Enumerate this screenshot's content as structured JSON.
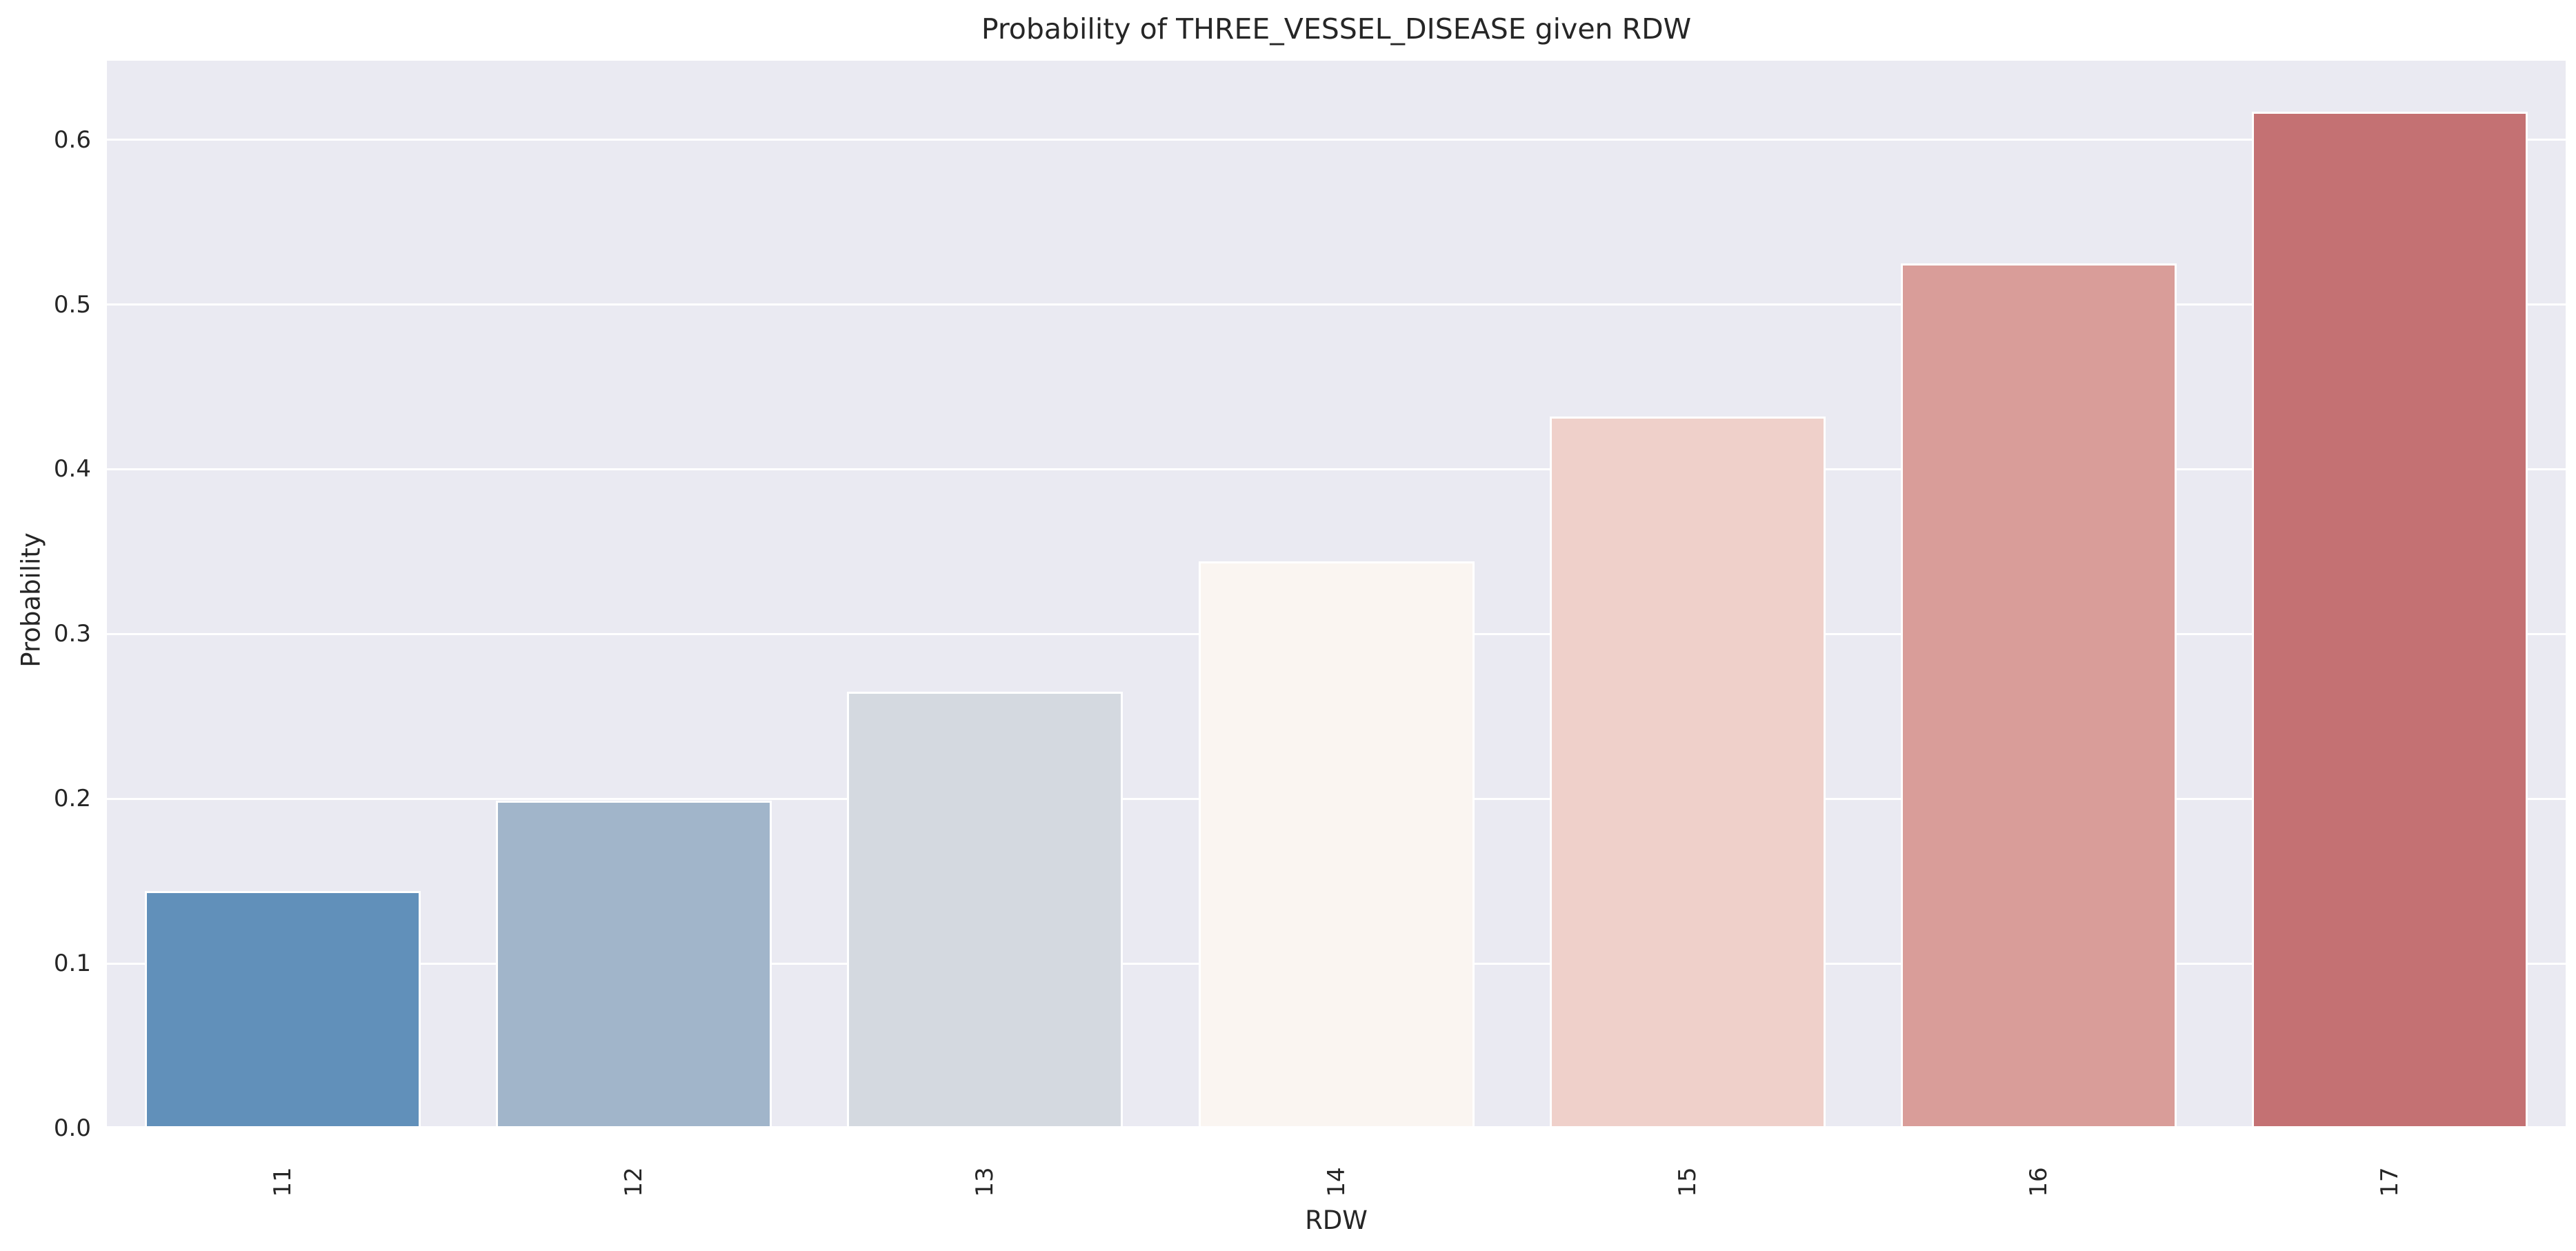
{
  "chart_data": {
    "type": "bar",
    "title": "Probability of THREE_VESSEL_DISEASE given RDW",
    "xlabel": "RDW",
    "ylabel": "Probability",
    "categories": [
      "11",
      "12",
      "13",
      "14",
      "15",
      "16",
      "17"
    ],
    "values": [
      0.144,
      0.199,
      0.265,
      0.344,
      0.432,
      0.525,
      0.617
    ],
    "bar_colors": [
      "#6190ba",
      "#a1b5ca",
      "#d4d9e0",
      "#faf5f1",
      "#efd0ca",
      "#d99d99",
      "#c47173"
    ],
    "bar_edge_color": "#ffffff",
    "yticks": [
      0.0,
      0.1,
      0.2,
      0.3,
      0.4,
      0.5,
      0.6
    ],
    "ytick_labels": [
      "0.0",
      "0.1",
      "0.2",
      "0.3",
      "0.4",
      "0.5",
      "0.6"
    ],
    "ylim": [
      0,
      0.648
    ],
    "grid": true,
    "grid_color": "#ffffff",
    "plot_bg": "#eaeaf2",
    "figure_bg": "#ffffff",
    "text_color": "#262626",
    "x_tick_rotation": 90,
    "legend": false
  }
}
